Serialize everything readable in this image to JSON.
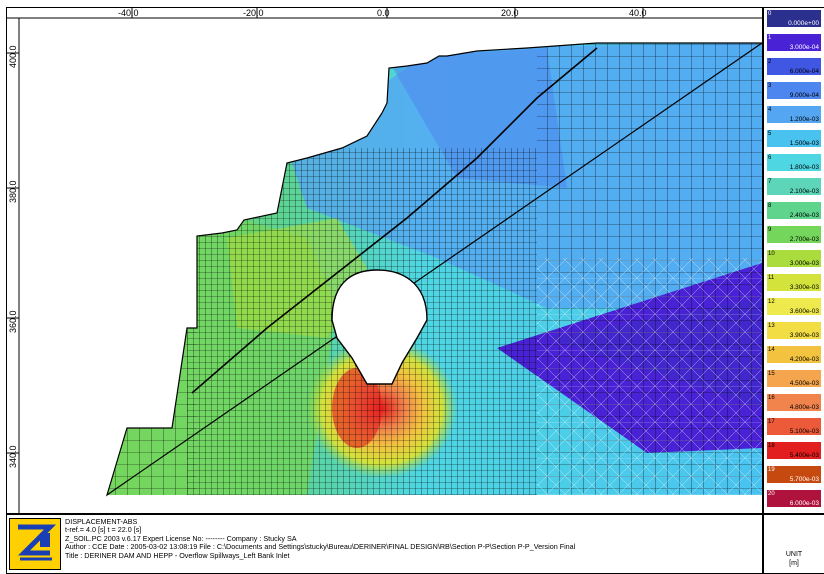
{
  "plot": {
    "x_ticks": [
      "-40.0",
      "-20.0",
      "0.0",
      "20.0",
      "40.0"
    ],
    "y_ticks": [
      "400.0",
      "380.0",
      "360.0",
      "340.0"
    ]
  },
  "legend": {
    "items": [
      {
        "index": "0",
        "value": "0.000e+00",
        "color": "#2b2f8e"
      },
      {
        "index": "1",
        "value": "3.000e-04",
        "color": "#4a22d6"
      },
      {
        "index": "2",
        "value": "6.000e-04",
        "color": "#3f57e3"
      },
      {
        "index": "3",
        "value": "9.000e-04",
        "color": "#4c86ee"
      },
      {
        "index": "4",
        "value": "1.200e-03",
        "color": "#55a6f2"
      },
      {
        "index": "5",
        "value": "1.500e-03",
        "color": "#49c2f0"
      },
      {
        "index": "6",
        "value": "1.800e-03",
        "color": "#4fd6e3"
      },
      {
        "index": "7",
        "value": "2.100e-03",
        "color": "#5dd5b8"
      },
      {
        "index": "8",
        "value": "2.400e-03",
        "color": "#5ed48c"
      },
      {
        "index": "9",
        "value": "2.700e-03",
        "color": "#74d65a"
      },
      {
        "index": "10",
        "value": "3.000e-03",
        "color": "#a9dc3c"
      },
      {
        "index": "11",
        "value": "3.300e-03",
        "color": "#d3e33c"
      },
      {
        "index": "12",
        "value": "3.600e-03",
        "color": "#eeea4e"
      },
      {
        "index": "13",
        "value": "3.900e-03",
        "color": "#f2dd45"
      },
      {
        "index": "14",
        "value": "4.200e-03",
        "color": "#f3c33f"
      },
      {
        "index": "15",
        "value": "4.500e-03",
        "color": "#f4a54d"
      },
      {
        "index": "16",
        "value": "4.800e-03",
        "color": "#f1844c"
      },
      {
        "index": "17",
        "value": "5.100e-03",
        "color": "#ec5a3a"
      },
      {
        "index": "18",
        "value": "5.400e-03",
        "color": "#e31e1e"
      },
      {
        "index": "19",
        "value": "5.700e-03",
        "color": "#c64a10"
      },
      {
        "index": "20",
        "value": "6.000e-03",
        "color": "#b0123e"
      }
    ]
  },
  "unit": {
    "label": "UNIT",
    "value": "[m]"
  },
  "footer": {
    "line1": "DISPLACEMENT-ABS",
    "line2": "t-ref.= 4.0 [s]    t =  22.0 [s]",
    "line3": "Z_SOIL.PC 2003 v.6.17 Expert    License No: --------    Company : Stucky SA",
    "line4": "Author : CCE    Date : 2005-03-02  13:08:19    File : C:\\Documents and Settings\\stucky\\Bureau\\DERINER\\FINAL DESIGN\\RB\\Section P-P\\Section P-P_Version Final",
    "line5": "Title : DERINER DAM AND HEPP - Overflow Spillways_Left Bank Inlet"
  }
}
